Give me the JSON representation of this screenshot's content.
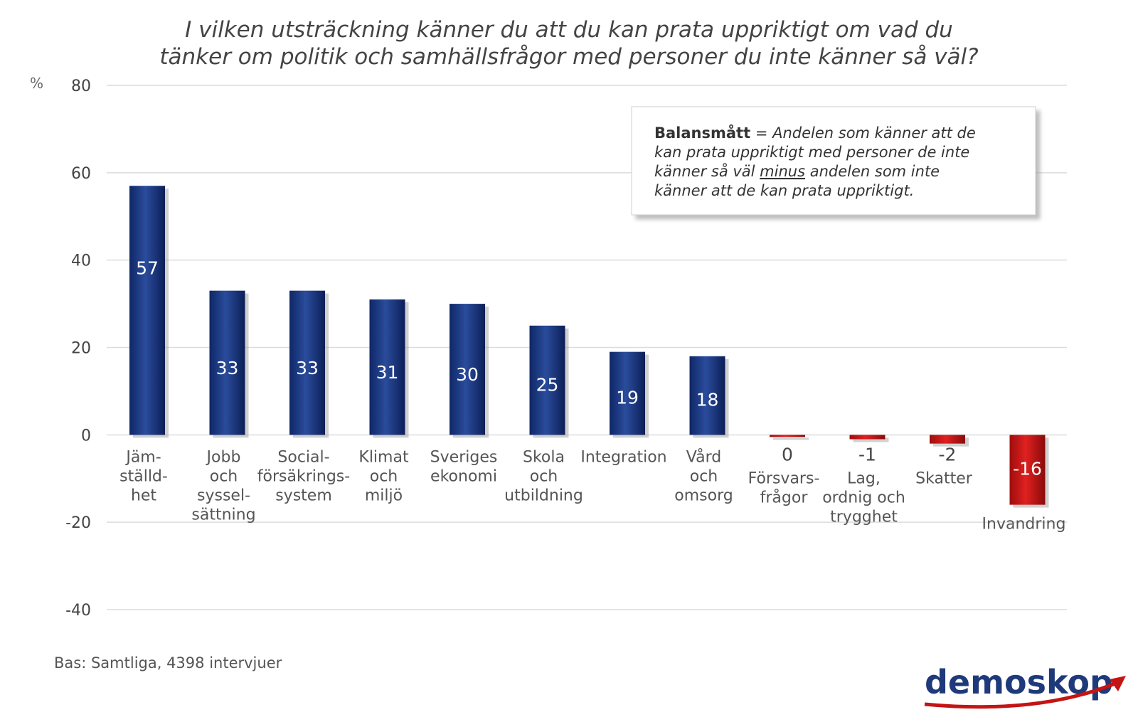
{
  "chart_data": {
    "type": "bar",
    "title_lines": [
      "I vilken utsträckning känner du att du kan prata uppriktigt om vad du",
      "tänker om politik och samhällsfrågor med personer du inte känner så väl?"
    ],
    "ylabel": "%",
    "ylim": [
      -40,
      80
    ],
    "yticks": [
      "80",
      "60",
      "40",
      "20",
      "0",
      "-20",
      "-40"
    ],
    "grid": true,
    "categories": [
      [
        "Jäm-",
        "ställd-",
        "het"
      ],
      [
        "Jobb",
        "och",
        "syssel-",
        "sättning"
      ],
      [
        "Social-",
        "försäkrings-",
        "system"
      ],
      [
        "Klimat",
        "och",
        "miljö"
      ],
      [
        "Sveriges",
        "ekonomi"
      ],
      [
        "Skola",
        "och",
        "utbildning"
      ],
      [
        "Integration"
      ],
      [
        "Vård",
        "och",
        "omsorg"
      ],
      [
        "Försvars-",
        "frågor"
      ],
      [
        "Lag,",
        "ordnig och",
        "trygghet"
      ],
      [
        "Skatter"
      ],
      [
        "Invandring"
      ]
    ],
    "values": [
      57,
      33,
      33,
      31,
      30,
      25,
      19,
      18,
      0,
      -1,
      -2,
      -16
    ],
    "value_labels": [
      "57",
      "33",
      "33",
      "31",
      "30",
      "25",
      "19",
      "18",
      "0",
      "-1",
      "-2",
      "-16"
    ],
    "colors": {
      "positive": "#1f3d86",
      "negative": "#c41414"
    },
    "note": {
      "bold": "Balansmått",
      "lines": [
        " = Andelen som känner att de",
        "kan prata uppriktigt med personer de inte",
        "känner så väl ",
        "minus",
        " andelen som inte",
        "känner att de kan prata uppriktigt."
      ]
    }
  },
  "footer": {
    "base": "Bas: Samtliga, 4398 intervjuer"
  },
  "logo": {
    "text": "demoskop",
    "color": "#1f3a7a",
    "swoosh_color": "#c41414"
  }
}
